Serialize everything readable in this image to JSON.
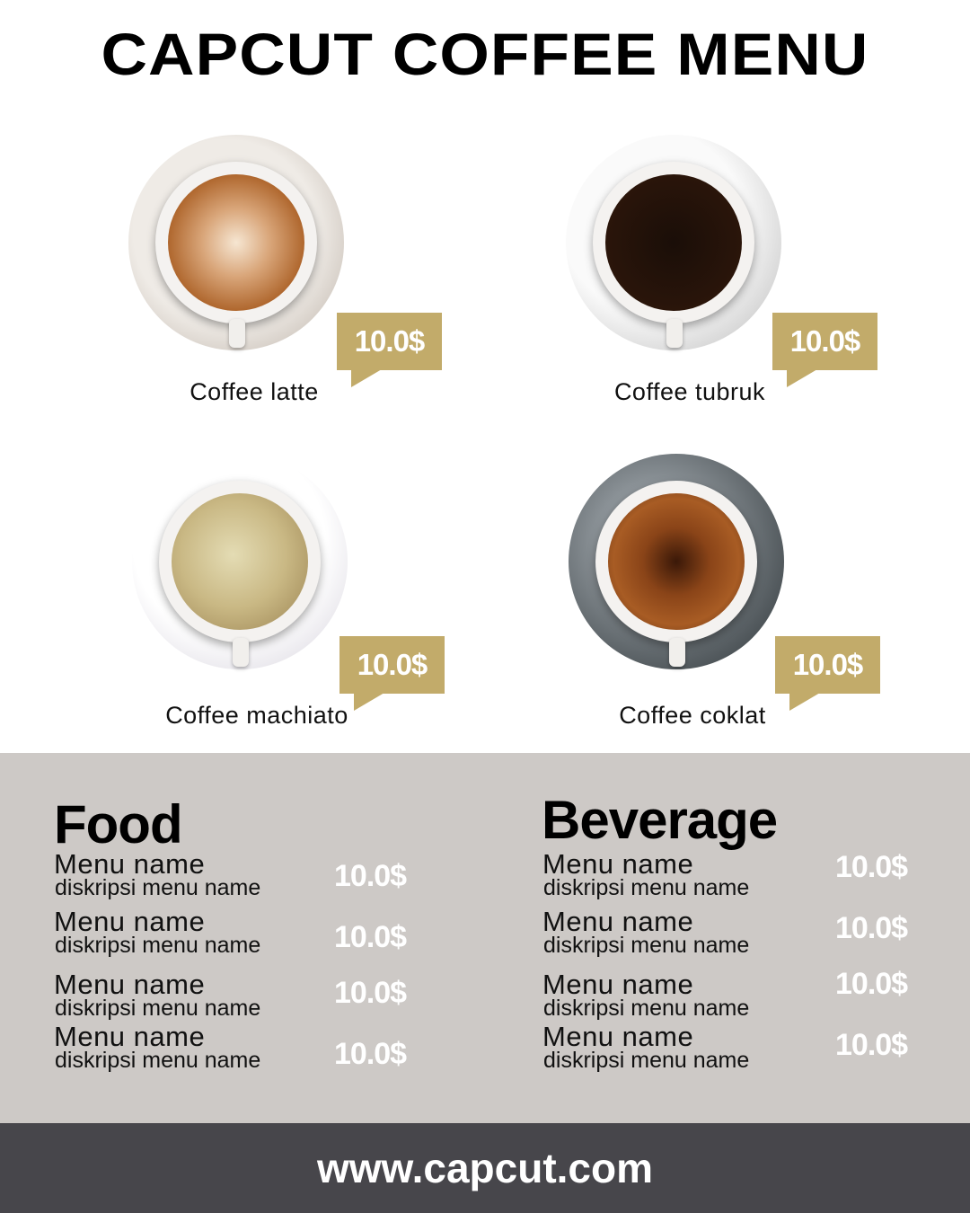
{
  "title": "CAPCUT COFFEE MENU",
  "colors": {
    "accent": "#c2ab6a",
    "panel": "#cdc9c6",
    "footer": "#47464b"
  },
  "featured": [
    {
      "name": "Coffee latte",
      "price": "10.0$"
    },
    {
      "name": "Coffee tubruk",
      "price": "10.0$"
    },
    {
      "name": "Coffee machiato",
      "price": "10.0$"
    },
    {
      "name": "Coffee coklat",
      "price": "10.0$"
    }
  ],
  "food": {
    "title": "Food",
    "items": [
      {
        "name": "Menu name",
        "desc": "diskripsi menu name",
        "price": "10.0$"
      },
      {
        "name": "Menu name",
        "desc": "diskripsi menu name",
        "price": "10.0$"
      },
      {
        "name": "Menu name",
        "desc": "diskripsi menu name",
        "price": "10.0$"
      },
      {
        "name": "Menu name",
        "desc": "diskripsi menu name",
        "price": "10.0$"
      }
    ]
  },
  "beverage": {
    "title": "Beverage",
    "items": [
      {
        "name": "Menu name",
        "desc": "diskripsi menu name",
        "price": "10.0$"
      },
      {
        "name": "Menu name",
        "desc": "diskripsi menu name",
        "price": "10.0$"
      },
      {
        "name": "Menu name",
        "desc": "diskripsi menu name",
        "price": "10.0$"
      },
      {
        "name": "Menu name",
        "desc": "diskripsi menu name",
        "price": "10.0$"
      }
    ]
  },
  "footer": {
    "url": "www.capcut.com"
  }
}
